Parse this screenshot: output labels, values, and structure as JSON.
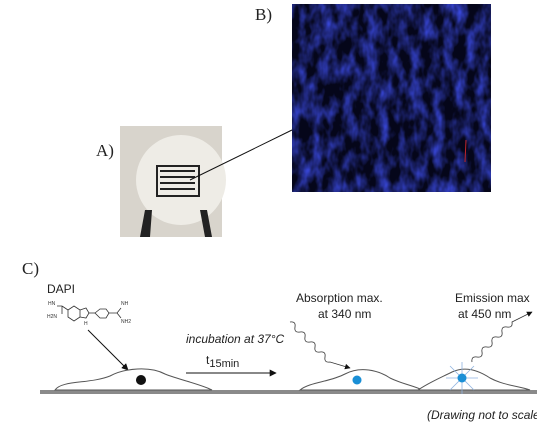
{
  "panel_a": {
    "label": "A)"
  },
  "panel_b": {
    "label": "B)"
  },
  "panel_c": {
    "label": "C)",
    "molecule": {
      "name": "DAPI",
      "atoms": [
        "HN",
        "NH",
        "NH2",
        "H",
        "H2N"
      ]
    },
    "step": {
      "text": "incubation at 37°C",
      "time": {
        "base": "t",
        "sub": "15min"
      }
    },
    "absorption": {
      "line1": "Absorption max.",
      "line2": "at 340 nm"
    },
    "emission": {
      "line1": "Emission max",
      "line2": "at 450 nm"
    },
    "note": "(Drawing not to scale"
  }
}
